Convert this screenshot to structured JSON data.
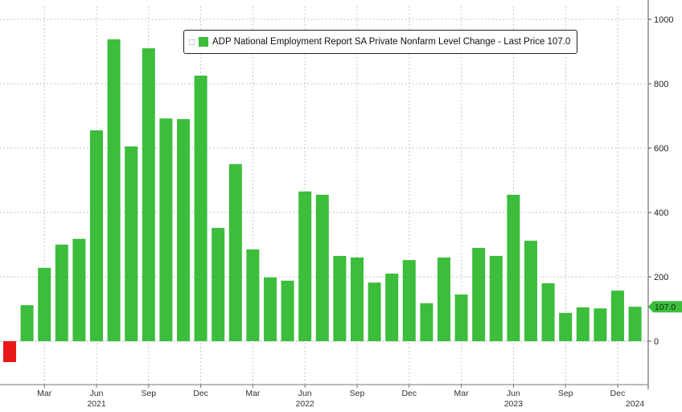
{
  "chart_data": {
    "type": "bar",
    "legend": {
      "label": "ADP National Employment Report SA Private Nonfarm Level Change - Last Price 107.0",
      "placement": "top-center"
    },
    "colors": {
      "positive": "#3cbd3c",
      "negative": "#e81818",
      "last_price_tag": "#3cbd3c"
    },
    "ylim": [
      -100,
      1000
    ],
    "yticks": [
      0,
      200,
      400,
      600,
      800,
      1000
    ],
    "grid": true,
    "y_axis_side": "right",
    "last_price_label": "107.0",
    "categories": [
      "Jan 2021",
      "Feb 2021",
      "Mar 2021",
      "Apr 2021",
      "May 2021",
      "Jun 2021",
      "Jul 2021",
      "Aug 2021",
      "Sep 2021",
      "Oct 2021",
      "Nov 2021",
      "Dec 2021",
      "Jan 2022",
      "Feb 2022",
      "Mar 2022",
      "Apr 2022",
      "May 2022",
      "Jun 2022",
      "Jul 2022",
      "Aug 2022",
      "Sep 2022",
      "Oct 2022",
      "Nov 2022",
      "Dec 2022",
      "Jan 2023",
      "Feb 2023",
      "Mar 2023",
      "Apr 2023",
      "May 2023",
      "Jun 2023",
      "Jul 2023",
      "Aug 2023",
      "Sep 2023",
      "Oct 2023",
      "Nov 2023",
      "Dec 2023",
      "Jan 2024"
    ],
    "values": [
      -65,
      112,
      228,
      300,
      318,
      655,
      938,
      605,
      910,
      692,
      690,
      825,
      352,
      550,
      285,
      198,
      188,
      465,
      455,
      265,
      260,
      182,
      210,
      252,
      118,
      260,
      145,
      290,
      265,
      455,
      312,
      180,
      88,
      105,
      102,
      157,
      107
    ],
    "x_tick_labels": [
      {
        "index": 2,
        "label": "Mar"
      },
      {
        "index": 5,
        "label": "Jun"
      },
      {
        "index": 8,
        "label": "Sep"
      },
      {
        "index": 11,
        "label": "Dec"
      },
      {
        "index": 14,
        "label": "Mar"
      },
      {
        "index": 17,
        "label": "Jun"
      },
      {
        "index": 20,
        "label": "Sep"
      },
      {
        "index": 23,
        "label": "Dec"
      },
      {
        "index": 26,
        "label": "Mar"
      },
      {
        "index": 29,
        "label": "Jun"
      },
      {
        "index": 32,
        "label": "Sep"
      },
      {
        "index": 35,
        "label": "Dec"
      }
    ],
    "year_labels": [
      {
        "index": 5,
        "label": "2021"
      },
      {
        "index": 17,
        "label": "2022"
      },
      {
        "index": 29,
        "label": "2023"
      },
      {
        "index": 36,
        "label": "2024"
      }
    ]
  }
}
